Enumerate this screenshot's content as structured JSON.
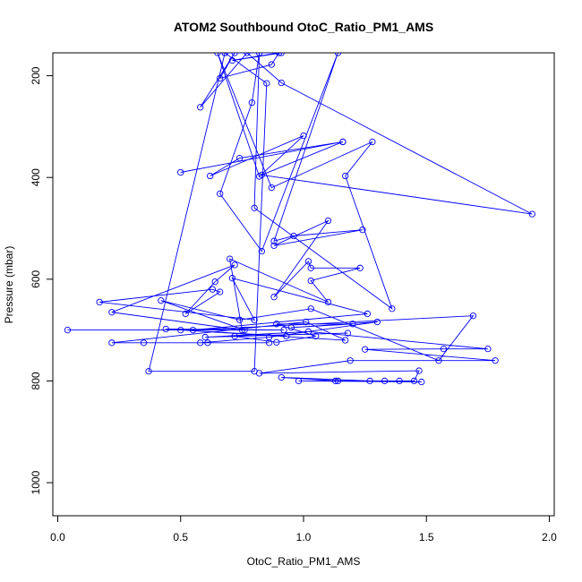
{
  "chart_data": {
    "type": "line",
    "title": "ATOM2 Southbound OtoC_Ratio_PM1_AMS",
    "xlabel": "OtoC_Ratio_PM1_AMS",
    "ylabel": "Pressure (mbar)",
    "xlim": [
      -0.02,
      2.02
    ],
    "ylim": [
      1065,
      155
    ],
    "y_reversed": true,
    "x_ticks": [
      0.0,
      0.5,
      1.0,
      1.5,
      2.0
    ],
    "x_tick_labels": [
      "0.0",
      "0.5",
      "1.0",
      "1.5",
      "2.0"
    ],
    "y_ticks": [
      200,
      400,
      600,
      800,
      1000
    ],
    "y_tick_labels": [
      "200",
      "400",
      "600",
      "800",
      "1000"
    ],
    "grid": false,
    "legend": "none",
    "series_color": "#0000ff",
    "marker": "open-circle",
    "points": [
      [
        0.68,
        155
      ],
      [
        0.37,
        781
      ],
      [
        0.8,
        781
      ],
      [
        0.85,
        215
      ],
      [
        0.68,
        155
      ],
      [
        0.91,
        155
      ],
      [
        0.71,
        170
      ],
      [
        0.9,
        155
      ],
      [
        0.87,
        178
      ],
      [
        0.66,
        205
      ],
      [
        0.72,
        155
      ],
      [
        0.58,
        262
      ],
      [
        0.77,
        155
      ],
      [
        0.91,
        214
      ],
      [
        1.93,
        472
      ],
      [
        0.83,
        395
      ],
      [
        1.16,
        330
      ],
      [
        0.5,
        390
      ],
      [
        1.16,
        330
      ],
      [
        0.74,
        362
      ],
      [
        0.62,
        397
      ],
      [
        1.0,
        318
      ],
      [
        0.82,
        398
      ],
      [
        0.65,
        155
      ],
      [
        0.87,
        420
      ],
      [
        1.28,
        330
      ],
      [
        1.17,
        397
      ],
      [
        1.36,
        658
      ],
      [
        0.8,
        460
      ],
      [
        0.82,
        155
      ],
      [
        0.79,
        253
      ],
      [
        0.66,
        432
      ],
      [
        0.83,
        545
      ],
      [
        1.14,
        155
      ],
      [
        0.88,
        525
      ],
      [
        0.96,
        515
      ],
      [
        1.24,
        503
      ],
      [
        0.88,
        534
      ],
      [
        1.1,
        485
      ],
      [
        0.88,
        635
      ],
      [
        1.02,
        565
      ],
      [
        1.03,
        578
      ],
      [
        1.23,
        578
      ],
      [
        1.03,
        603
      ],
      [
        1.1,
        645
      ],
      [
        0.7,
        560
      ],
      [
        0.75,
        700
      ],
      [
        0.22,
        665
      ],
      [
        0.72,
        572
      ],
      [
        0.64,
        605
      ],
      [
        0.52,
        668
      ],
      [
        0.66,
        625
      ],
      [
        0.63,
        620
      ],
      [
        0.17,
        645
      ],
      [
        0.8,
        680
      ],
      [
        0.71,
        598
      ],
      [
        1.26,
        668
      ],
      [
        0.55,
        700
      ],
      [
        1.69,
        672
      ],
      [
        1.55,
        760
      ],
      [
        1.03,
        658
      ],
      [
        0.74,
        680
      ],
      [
        0.42,
        642
      ],
      [
        0.76,
        700
      ],
      [
        0.04,
        700
      ],
      [
        0.92,
        700
      ],
      [
        0.44,
        698
      ],
      [
        0.93,
        712
      ],
      [
        0.5,
        700
      ],
      [
        1.17,
        720
      ],
      [
        1.01,
        684
      ],
      [
        0.22,
        725
      ],
      [
        0.86,
        725
      ],
      [
        0.35,
        725
      ],
      [
        0.61,
        725
      ],
      [
        0.58,
        725
      ],
      [
        0.86,
        714
      ],
      [
        1.3,
        684
      ],
      [
        0.95,
        695
      ],
      [
        1.2,
        688
      ],
      [
        0.89,
        688
      ],
      [
        1.05,
        712
      ],
      [
        0.89,
        724
      ],
      [
        0.72,
        712
      ],
      [
        1.18,
        706
      ],
      [
        0.6,
        714
      ],
      [
        1.02,
        703
      ],
      [
        1.75,
        737
      ],
      [
        1.57,
        737
      ],
      [
        1.25,
        738
      ],
      [
        1.78,
        760
      ],
      [
        1.19,
        760
      ],
      [
        0.82,
        785
      ],
      [
        1.47,
        780
      ],
      [
        1.45,
        800
      ],
      [
        1.13,
        800
      ],
      [
        1.33,
        800
      ],
      [
        1.39,
        800
      ],
      [
        1.48,
        802
      ],
      [
        0.98,
        800
      ],
      [
        1.27,
        800
      ],
      [
        0.91,
        793
      ],
      [
        1.14,
        800
      ]
    ]
  }
}
